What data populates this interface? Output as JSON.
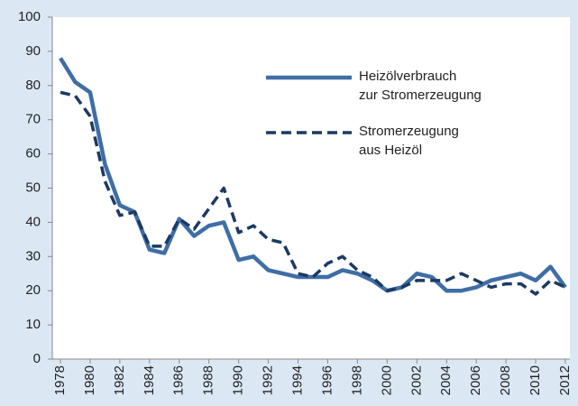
{
  "chart_data": {
    "type": "line",
    "x": [
      1978,
      1979,
      1980,
      1981,
      1982,
      1983,
      1984,
      1985,
      1986,
      1987,
      1988,
      1989,
      1990,
      1991,
      1992,
      1993,
      1994,
      1995,
      1996,
      1997,
      1998,
      1999,
      2000,
      2001,
      2002,
      2003,
      2004,
      2005,
      2006,
      2007,
      2008,
      2009,
      2010,
      2011,
      2012
    ],
    "series": [
      {
        "name": "Heizölverbrauch\n zur Stromerzeugung",
        "color": "#3f6ea6",
        "dash": "solid",
        "values": [
          88,
          81,
          78,
          57,
          45,
          43,
          32,
          31,
          41,
          36,
          39,
          40,
          29,
          30,
          26,
          25,
          24,
          24,
          24,
          26,
          25,
          23,
          20,
          21,
          25,
          24,
          20,
          20,
          21,
          23,
          24,
          25,
          23,
          27,
          21
        ]
      },
      {
        "name": "Stromerzeugung\naus Heizöl",
        "color": "#1b3a63",
        "dash": "dashed",
        "values": [
          78,
          77,
          71,
          52,
          42,
          43,
          33,
          33,
          41,
          38,
          44,
          50,
          37,
          39,
          35,
          34,
          25,
          24,
          28,
          30,
          26,
          24,
          20,
          21,
          23,
          23,
          23,
          25,
          23,
          21,
          22,
          22,
          19,
          23,
          21
        ]
      }
    ],
    "xlim": [
      1978,
      2012
    ],
    "xticks": [
      1978,
      1980,
      1982,
      1984,
      1986,
      1988,
      1990,
      1992,
      1994,
      1996,
      1998,
      2000,
      2002,
      2004,
      2006,
      2008,
      2010,
      2012
    ],
    "ylim": [
      0,
      100
    ],
    "yticks": [
      0,
      10,
      20,
      30,
      40,
      50,
      60,
      70,
      80,
      90,
      100
    ],
    "grid": false,
    "legend": "upper right"
  }
}
